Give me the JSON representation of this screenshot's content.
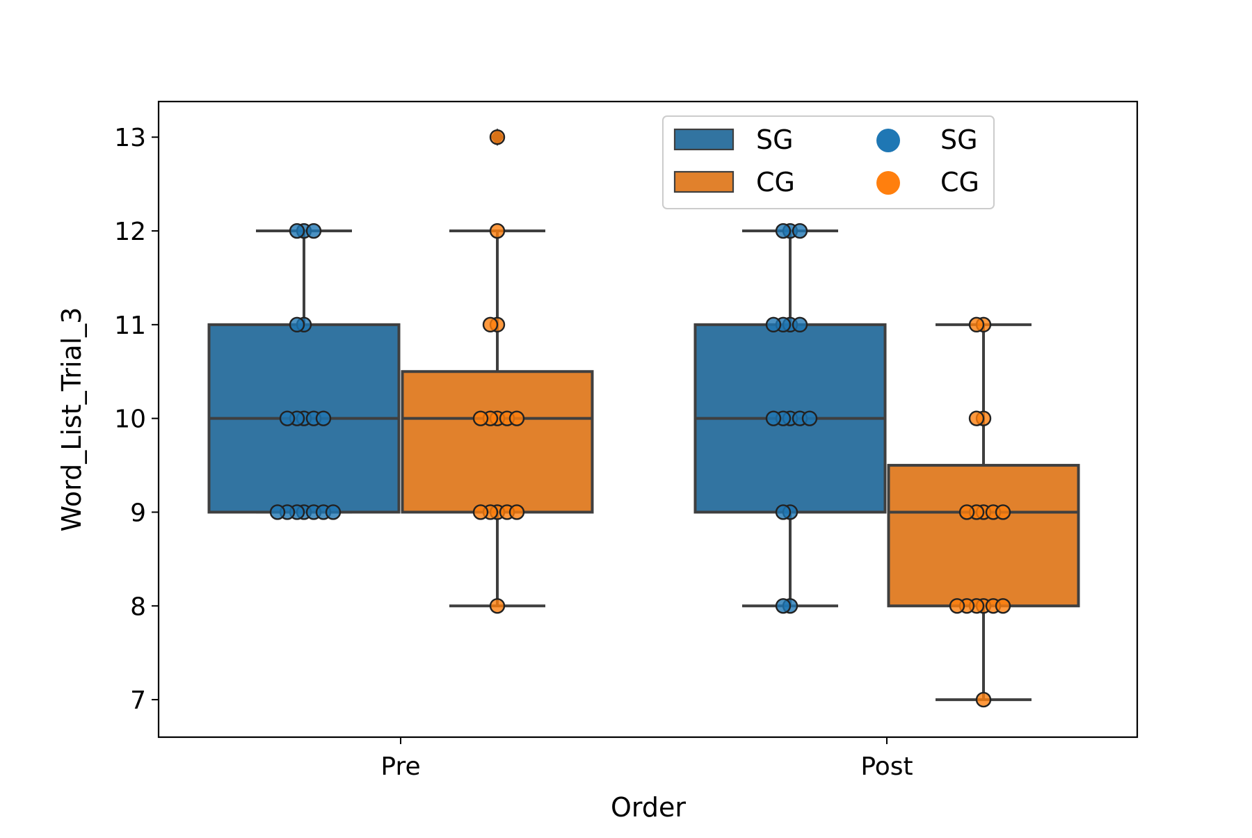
{
  "chart_data": {
    "type": "box",
    "title": "",
    "xlabel": "Order",
    "ylabel": "Word_List_Trial_3",
    "categories": [
      "Pre",
      "Post"
    ],
    "ylim": [
      6.6,
      13.38
    ],
    "yticks": [
      7,
      8,
      9,
      10,
      11,
      12,
      13
    ],
    "hue_order": [
      "SG",
      "CG"
    ],
    "colors": {
      "SG_box": "#3274a1",
      "CG_box": "#e1812c",
      "SG_point": "#1f77b4",
      "CG_point": "#ff7f0e",
      "line": "#3f3f3f"
    },
    "boxes": [
      {
        "category": "Pre",
        "group": "SG",
        "whisker_low": 9,
        "q1": 9,
        "median": 10,
        "q3": 11,
        "whisker_high": 12,
        "outliers": []
      },
      {
        "category": "Pre",
        "group": "CG",
        "whisker_low": 8,
        "q1": 9,
        "median": 10,
        "q3": 10.5,
        "whisker_high": 12,
        "outliers": [
          13
        ]
      },
      {
        "category": "Post",
        "group": "SG",
        "whisker_low": 8,
        "q1": 9,
        "median": 10,
        "q3": 11,
        "whisker_high": 12,
        "outliers": []
      },
      {
        "category": "Post",
        "group": "CG",
        "whisker_low": 7,
        "q1": 8,
        "median": 9,
        "q3": 9.5,
        "whisker_high": 11,
        "outliers": []
      }
    ],
    "points": [
      {
        "category": "Pre",
        "group": "SG",
        "values": [
          12,
          12,
          12,
          11,
          11,
          10,
          10,
          10,
          10,
          10,
          9,
          9,
          9,
          9,
          9,
          9,
          9
        ]
      },
      {
        "category": "Pre",
        "group": "CG",
        "values": [
          13,
          12,
          11,
          11,
          10,
          10,
          10,
          10,
          10,
          9,
          9,
          9,
          9,
          9,
          8
        ]
      },
      {
        "category": "Post",
        "group": "SG",
        "values": [
          12,
          12,
          12,
          11,
          11,
          11,
          11,
          10,
          10,
          10,
          10,
          10,
          9,
          9,
          8,
          8
        ]
      },
      {
        "category": "Post",
        "group": "CG",
        "values": [
          11,
          11,
          10,
          10,
          9,
          9,
          9,
          9,
          9,
          8,
          8,
          8,
          8,
          8,
          8,
          7
        ]
      }
    ],
    "legend": {
      "location": "upper center",
      "columns": 2,
      "entries": [
        {
          "label": "SG",
          "kind": "box",
          "group": "SG"
        },
        {
          "label": "CG",
          "kind": "box",
          "group": "CG"
        },
        {
          "label": "SG",
          "kind": "point",
          "group": "SG"
        },
        {
          "label": "CG",
          "kind": "point",
          "group": "CG"
        }
      ]
    }
  }
}
